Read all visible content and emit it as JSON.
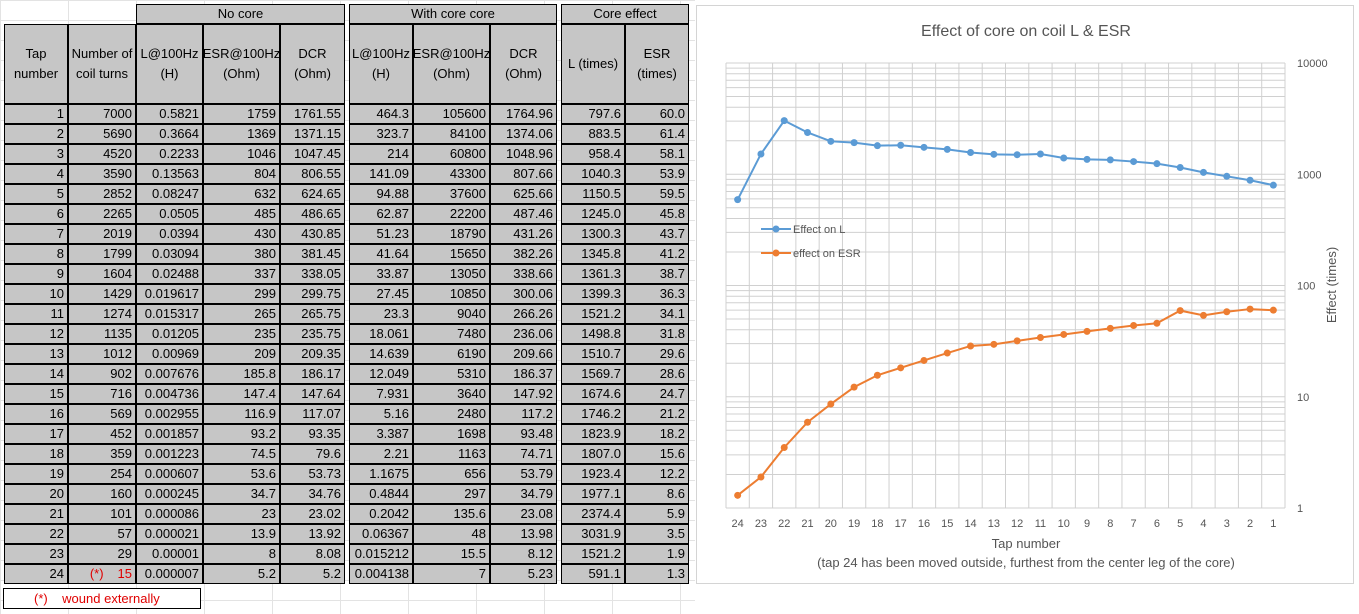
{
  "table": {
    "groups": [
      "No core",
      "With core core",
      "Core effect"
    ],
    "tap_header": "Tap number",
    "turns_header": "Number of coil turns",
    "sub_headers": [
      "L@100Hz (H)",
      "ESR@100Hz (Ohm)",
      "DCR (Ohm)",
      "L@100Hz (H)",
      "ESR@100Hz (Ohm)",
      "DCR (Ohm)",
      "L (times)",
      "ESR (times)"
    ],
    "rows": [
      [
        "1",
        "7000",
        "0.5821",
        "1759",
        "1761.55",
        "464.3",
        "105600",
        "1764.96",
        "797.6",
        "60.0"
      ],
      [
        "2",
        "5690",
        "0.3664",
        "1369",
        "1371.15",
        "323.7",
        "84100",
        "1374.06",
        "883.5",
        "61.4"
      ],
      [
        "3",
        "4520",
        "0.2233",
        "1046",
        "1047.45",
        "214",
        "60800",
        "1048.96",
        "958.4",
        "58.1"
      ],
      [
        "4",
        "3590",
        "0.13563",
        "804",
        "806.55",
        "141.09",
        "43300",
        "807.66",
        "1040.3",
        "53.9"
      ],
      [
        "5",
        "2852",
        "0.08247",
        "632",
        "624.65",
        "94.88",
        "37600",
        "625.66",
        "1150.5",
        "59.5"
      ],
      [
        "6",
        "2265",
        "0.0505",
        "485",
        "486.65",
        "62.87",
        "22200",
        "487.46",
        "1245.0",
        "45.8"
      ],
      [
        "7",
        "2019",
        "0.0394",
        "430",
        "430.85",
        "51.23",
        "18790",
        "431.26",
        "1300.3",
        "43.7"
      ],
      [
        "8",
        "1799",
        "0.03094",
        "380",
        "381.45",
        "41.64",
        "15650",
        "382.26",
        "1345.8",
        "41.2"
      ],
      [
        "9",
        "1604",
        "0.02488",
        "337",
        "338.05",
        "33.87",
        "13050",
        "338.66",
        "1361.3",
        "38.7"
      ],
      [
        "10",
        "1429",
        "0.019617",
        "299",
        "299.75",
        "27.45",
        "10850",
        "300.06",
        "1399.3",
        "36.3"
      ],
      [
        "11",
        "1274",
        "0.015317",
        "265",
        "265.75",
        "23.3",
        "9040",
        "266.26",
        "1521.2",
        "34.1"
      ],
      [
        "12",
        "1135",
        "0.01205",
        "235",
        "235.75",
        "18.061",
        "7480",
        "236.06",
        "1498.8",
        "31.8"
      ],
      [
        "13",
        "1012",
        "0.00969",
        "209",
        "209.35",
        "14.639",
        "6190",
        "209.66",
        "1510.7",
        "29.6"
      ],
      [
        "14",
        "902",
        "0.007676",
        "185.8",
        "186.17",
        "12.049",
        "5310",
        "186.37",
        "1569.7",
        "28.6"
      ],
      [
        "15",
        "716",
        "0.004736",
        "147.4",
        "147.64",
        "7.931",
        "3640",
        "147.92",
        "1674.6",
        "24.7"
      ],
      [
        "16",
        "569",
        "0.002955",
        "116.9",
        "117.07",
        "5.16",
        "2480",
        "117.2",
        "1746.2",
        "21.2"
      ],
      [
        "17",
        "452",
        "0.001857",
        "93.2",
        "93.35",
        "3.387",
        "1698",
        "93.48",
        "1823.9",
        "18.2"
      ],
      [
        "18",
        "359",
        "0.001223",
        "74.5",
        "79.6",
        "2.21",
        "1163",
        "74.71",
        "1807.0",
        "15.6"
      ],
      [
        "19",
        "254",
        "0.000607",
        "53.6",
        "53.73",
        "1.1675",
        "656",
        "53.79",
        "1923.4",
        "12.2"
      ],
      [
        "20",
        "160",
        "0.000245",
        "34.7",
        "34.76",
        "0.4844",
        "297",
        "34.79",
        "1977.1",
        "8.6"
      ],
      [
        "21",
        "101",
        "0.000086",
        "23",
        "23.02",
        "0.2042",
        "135.6",
        "23.08",
        "2374.4",
        "5.9"
      ],
      [
        "22",
        "57",
        "0.000021",
        "13.9",
        "13.92",
        "0.06367",
        "48",
        "13.98",
        "3031.9",
        "3.5"
      ],
      [
        "23",
        "29",
        "0.00001",
        "8",
        "8.08",
        "0.015212",
        "15.5",
        "8.12",
        "1521.2",
        "1.9"
      ],
      [
        "24",
        "15",
        "0.000007",
        "5.2",
        "5.2",
        "0.004138",
        "7",
        "5.23",
        "591.1",
        "1.3"
      ]
    ],
    "last_row_marker": "(*)",
    "footnote": "(*)    wound externally"
  },
  "chart_data": {
    "type": "line",
    "title": "Effect of core on coil L & ESR",
    "xlabel": "Tap number",
    "xlabel_note": "(tap 24 has been moved outside, furthest from the center leg of the core)",
    "ylabel": "Effect (times)",
    "y_scale": "log",
    "ylim": [
      1,
      10000
    ],
    "y_ticks": [
      "1",
      "10",
      "100",
      "1000",
      "10000"
    ],
    "x": [
      "24",
      "23",
      "22",
      "21",
      "20",
      "19",
      "18",
      "17",
      "16",
      "15",
      "14",
      "13",
      "12",
      "11",
      "10",
      "9",
      "8",
      "7",
      "6",
      "5",
      "4",
      "3",
      "2",
      "1"
    ],
    "series": [
      {
        "name": "Effect on L",
        "color": "#5b9bd5",
        "values": [
          591.1,
          1521.2,
          3031.9,
          2374.4,
          1977.1,
          1923.4,
          1807.0,
          1823.9,
          1746.2,
          1674.6,
          1569.7,
          1510.7,
          1498.8,
          1521.2,
          1399.3,
          1361.3,
          1345.8,
          1300.3,
          1245.0,
          1150.5,
          1040.3,
          958.4,
          883.5,
          797.6
        ]
      },
      {
        "name": "effect on ESR",
        "color": "#ed7d31",
        "values": [
          1.3,
          1.9,
          3.5,
          5.9,
          8.6,
          12.2,
          15.6,
          18.2,
          21.2,
          24.7,
          28.6,
          29.6,
          31.8,
          34.1,
          36.3,
          38.7,
          41.2,
          43.7,
          45.8,
          59.5,
          53.9,
          58.1,
          61.4,
          60.0
        ]
      }
    ],
    "legend_position": "left",
    "grid": true
  }
}
